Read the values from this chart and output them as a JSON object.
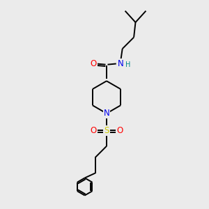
{
  "background_color": "#ebebeb",
  "atom_colors": {
    "C": "#000000",
    "N": "#0000ee",
    "O": "#ff0000",
    "S": "#cccc00",
    "H": "#008888"
  },
  "bond_color": "#000000",
  "figsize": [
    3.0,
    3.0
  ],
  "dpi": 100,
  "lw": 1.4
}
